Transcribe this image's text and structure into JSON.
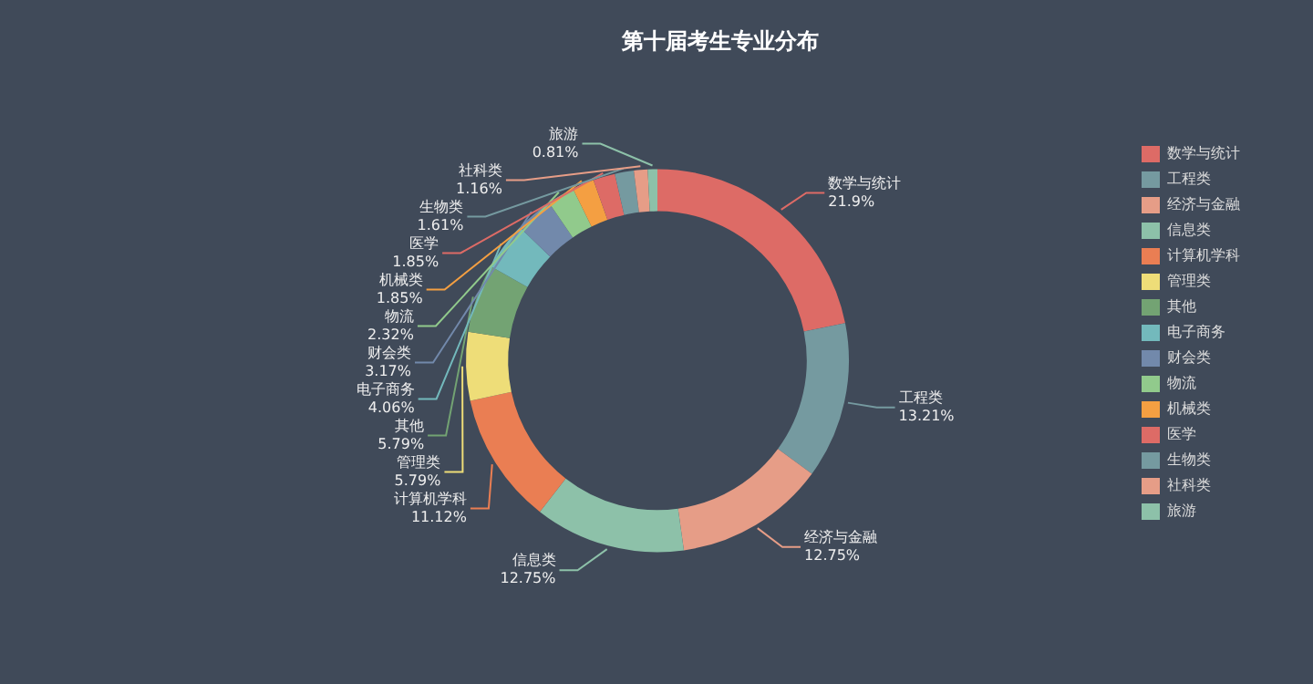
{
  "chart_data": {
    "type": "donut",
    "title": "第十届考生专业分布",
    "categories": [
      "数学与统计",
      "工程类",
      "经济与金融",
      "信息类",
      "计算机学科",
      "管理类",
      "其他",
      "电子商务",
      "财会类",
      "物流",
      "机械类",
      "医学",
      "生物类",
      "社科类",
      "旅游"
    ],
    "values": [
      21.9,
      13.21,
      12.75,
      12.75,
      11.12,
      5.79,
      5.79,
      4.06,
      3.17,
      2.32,
      1.85,
      1.85,
      1.61,
      1.16,
      0.81
    ],
    "value_labels": [
      "21.9%",
      "13.21%",
      "12.75%",
      "12.75%",
      "11.12%",
      "5.79%",
      "5.79%",
      "4.06%",
      "3.17%",
      "2.32%",
      "1.85%",
      "1.85%",
      "1.61%",
      "1.16%",
      "0.81%"
    ],
    "colors": [
      "#dd6b66",
      "#759aa0",
      "#e69d87",
      "#8dc1a9",
      "#ea7e53",
      "#eedd78",
      "#73a373",
      "#73b9bc",
      "#7289ab",
      "#91ca8c",
      "#f49f42",
      "#dd6b66",
      "#759aa0",
      "#e69d87",
      "#8dc1a9"
    ],
    "legend": "right"
  }
}
